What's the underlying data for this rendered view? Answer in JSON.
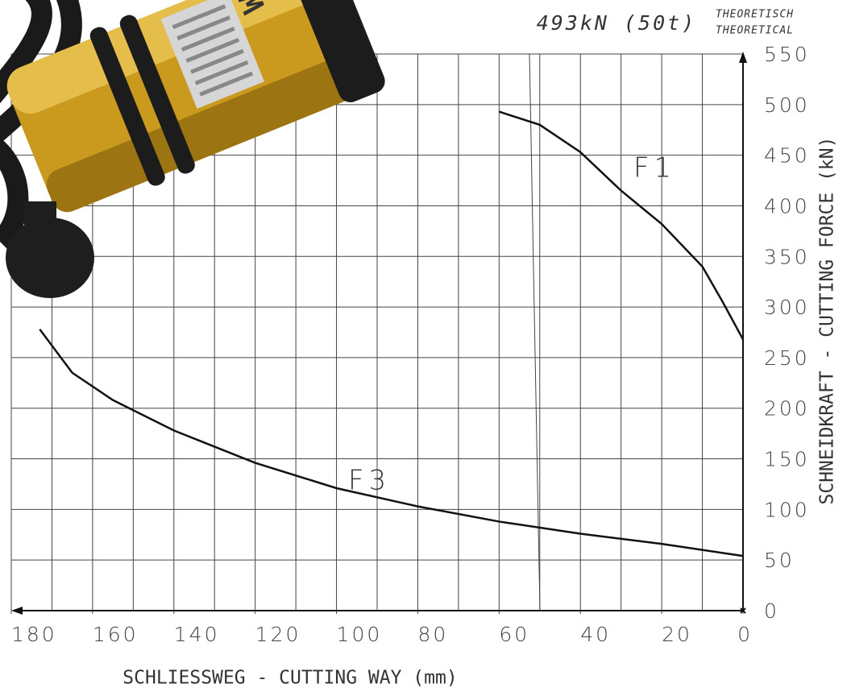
{
  "chart_data": {
    "type": "line",
    "x_label": "SCHLIESSWEG - CUTTING WAY (mm)",
    "y_label": "SCHNEIDKRAFT - CUTTING FORCE (kN)",
    "annotations": [
      "493kN (50t)",
      "THEORETISCH",
      "THEORETICAL"
    ],
    "xlim": [
      180,
      0
    ],
    "xticks": [
      180,
      160,
      140,
      120,
      100,
      80,
      60,
      40,
      20,
      0
    ],
    "ylim": [
      0,
      550
    ],
    "yticks": [
      0,
      50,
      100,
      150,
      200,
      250,
      300,
      350,
      400,
      450,
      500,
      550
    ],
    "grid_step_x": 10,
    "grid": true,
    "series": [
      {
        "name": "F1",
        "color": "#111111",
        "x": [
          60,
          50,
          40,
          30,
          20,
          10,
          5,
          0
        ],
        "values": [
          493,
          480,
          453,
          415,
          382,
          340,
          305,
          268
        ]
      },
      {
        "name": "F3",
        "color": "#111111",
        "x": [
          173,
          165,
          155,
          140,
          120,
          100,
          80,
          60,
          40,
          20,
          0
        ],
        "values": [
          278,
          235,
          208,
          178,
          146,
          121,
          103,
          88,
          76,
          66,
          54
        ]
      }
    ]
  }
}
